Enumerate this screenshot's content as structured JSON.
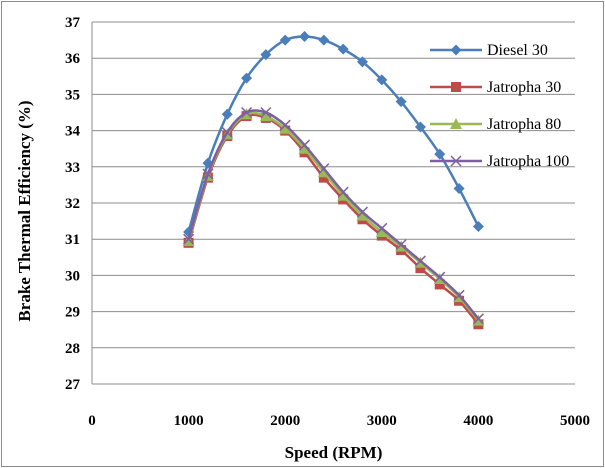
{
  "chart_data": {
    "type": "line",
    "title": "",
    "xlabel": "Speed (RPM)",
    "ylabel": "Brake Thermal Efficiency (%)",
    "xlim": [
      0,
      5000
    ],
    "ylim": [
      27,
      37
    ],
    "xticks": [
      "0",
      "1000",
      "2000",
      "3000",
      "4000",
      "5000"
    ],
    "yticks": [
      "27",
      "28",
      "29",
      "30",
      "31",
      "32",
      "33",
      "34",
      "35",
      "36",
      "37"
    ],
    "grid": "horizontal",
    "legend_position": "right",
    "x": [
      1000,
      1200,
      1400,
      1600,
      1800,
      2000,
      2200,
      2400,
      2600,
      2800,
      3000,
      3200,
      3400,
      3600,
      3800,
      4000
    ],
    "series": [
      {
        "name": "Diesel 30",
        "color": "#4a7ebb",
        "marker": "diamond",
        "values": [
          31.2,
          33.1,
          34.45,
          35.45,
          36.1,
          36.5,
          36.6,
          36.5,
          36.25,
          35.9,
          35.4,
          34.8,
          34.1,
          33.35,
          32.4,
          31.35
        ]
      },
      {
        "name": "Jatropha 30",
        "color": "#be4b48",
        "marker": "square",
        "values": [
          30.9,
          32.7,
          33.85,
          34.4,
          34.35,
          34.0,
          33.4,
          32.7,
          32.1,
          31.55,
          31.1,
          30.7,
          30.2,
          29.75,
          29.3,
          28.65
        ]
      },
      {
        "name": "Jatropha 80",
        "color": "#98b954",
        "marker": "triangle",
        "values": [
          30.95,
          32.75,
          33.9,
          34.45,
          34.4,
          34.05,
          33.5,
          32.85,
          32.2,
          31.65,
          31.2,
          30.8,
          30.35,
          29.9,
          29.4,
          28.75
        ]
      },
      {
        "name": "Jatropha 100",
        "color": "#7d60a0",
        "marker": "x",
        "values": [
          31.0,
          32.8,
          33.95,
          34.5,
          34.5,
          34.15,
          33.6,
          32.95,
          32.3,
          31.75,
          31.3,
          30.85,
          30.4,
          29.95,
          29.45,
          28.8
        ]
      }
    ]
  }
}
